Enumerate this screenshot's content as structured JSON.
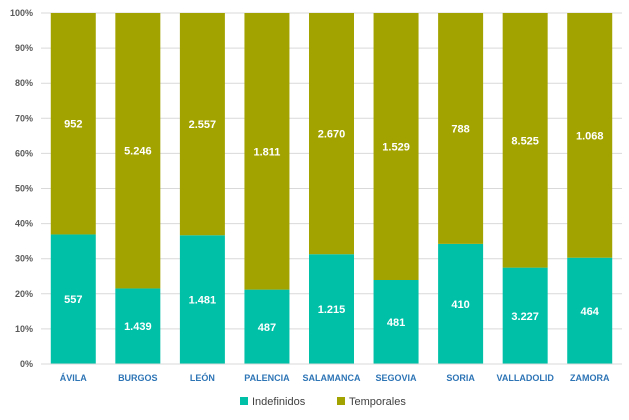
{
  "chart_data": {
    "type": "bar",
    "stacked": "percent",
    "categories": [
      "ÁVILA",
      "BURGOS",
      "LEÓN",
      "PALENCIA",
      "SALAMANCA",
      "SEGOVIA",
      "SORIA",
      "VALLADOLID",
      "ZAMORA"
    ],
    "series": [
      {
        "name": "Indefinidos",
        "color": "#00c0a8",
        "values": [
          557,
          1439,
          1481,
          487,
          1215,
          481,
          410,
          3227,
          464
        ],
        "labels": [
          "557",
          "1.439",
          "1.481",
          "487",
          "1.215",
          "481",
          "410",
          "3.227",
          "464"
        ]
      },
      {
        "name": "Temporales",
        "color": "#a3a300",
        "values": [
          952,
          5246,
          2557,
          1811,
          2670,
          1529,
          788,
          8525,
          1068
        ],
        "labels": [
          "952",
          "5.246",
          "2.557",
          "1.811",
          "2.670",
          "1.529",
          "788",
          "8.525",
          "1.068"
        ]
      }
    ],
    "yticks": [
      "0%",
      "10%",
      "20%",
      "30%",
      "40%",
      "50%",
      "60%",
      "70%",
      "80%",
      "90%",
      "100%"
    ],
    "ylim": [
      0,
      100
    ],
    "grid": true,
    "legend_position": "bottom"
  }
}
